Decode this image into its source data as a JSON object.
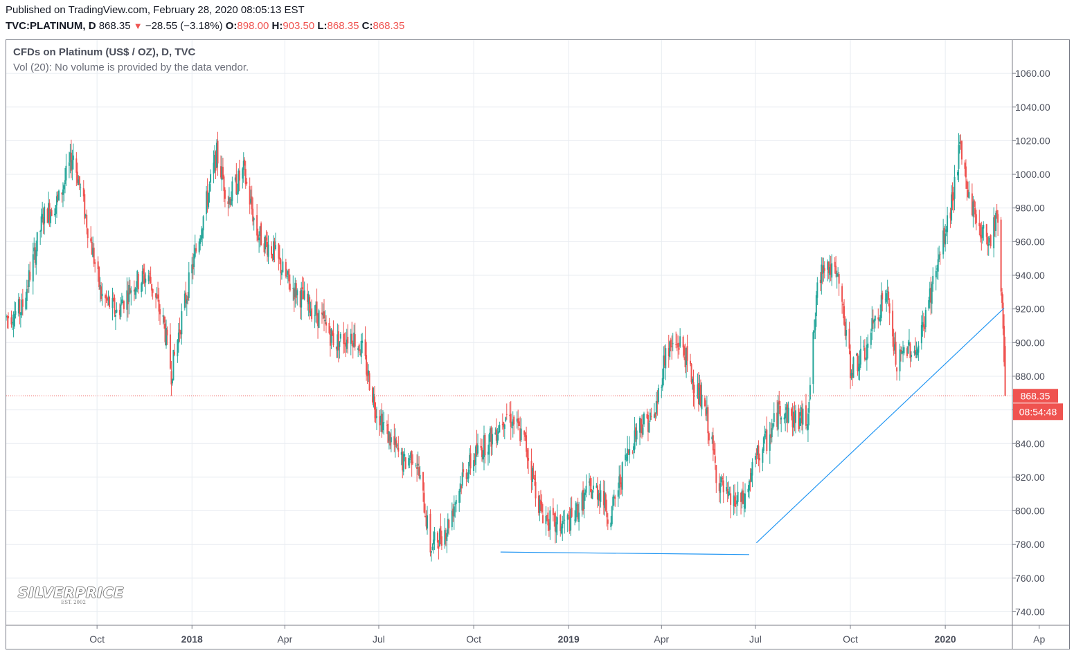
{
  "header": {
    "published": "Published on TradingView.com, February 28, 2020 08:05:13 EST",
    "symbol": "TVC:PLATINUM, D",
    "last": "868.35",
    "change_arrow": "▼",
    "change": "−28.55 (−3.18%)",
    "open_label": "O:",
    "open": "898.00",
    "high_label": "H:",
    "high": "903.50",
    "low_label": "L:",
    "low": "868.35",
    "close_label": "C:",
    "close": "868.35"
  },
  "legend": {
    "title": "CFDs on Platinum (US$ / OZ), D, TVC",
    "volume": "Vol (20): No volume is provided by the data vendor."
  },
  "watermark": {
    "logo": "SILVERPRICE",
    "sub": "EST. 2002"
  },
  "colors": {
    "up": "#26a69a",
    "down": "#ef5350",
    "grid": "#e8ecf1",
    "trendline": "#2196f3",
    "price_line": "#ef5350",
    "axis_text": "#4a4e5a"
  },
  "chart_data": {
    "type": "candlestick",
    "title": "CFDs on Platinum (US$ / OZ), D, TVC",
    "ylim": [
      730,
      1070
    ],
    "y_ticks": [
      740,
      760,
      780,
      800,
      820,
      840,
      860,
      880,
      900,
      920,
      940,
      960,
      980,
      1000,
      1020,
      1040,
      1060
    ],
    "y_tick_labels": [
      "740.00",
      "760.00",
      "780.00",
      "800.00",
      "820.00",
      "840.00",
      "860.00",
      "880.00",
      "900.00",
      "920.00",
      "940.00",
      "960.00",
      "980.00",
      "1000.00",
      "1020.00",
      "1040.00",
      "1060.00"
    ],
    "x_range": [
      "2017-07-05",
      "2020-03-06"
    ],
    "x_ticks": [
      {
        "date": "2017-10-01",
        "label": "Oct",
        "bold": false
      },
      {
        "date": "2018-01-01",
        "label": "2018",
        "bold": true
      },
      {
        "date": "2018-04-01",
        "label": "Apr",
        "bold": false
      },
      {
        "date": "2018-07-01",
        "label": "Jul",
        "bold": false
      },
      {
        "date": "2018-10-01",
        "label": "Oct",
        "bold": false
      },
      {
        "date": "2019-01-01",
        "label": "2019",
        "bold": true
      },
      {
        "date": "2019-04-01",
        "label": "Apr",
        "bold": false
      },
      {
        "date": "2019-07-01",
        "label": "Jul",
        "bold": false
      },
      {
        "date": "2019-10-01",
        "label": "Oct",
        "bold": false
      },
      {
        "date": "2020-01-01",
        "label": "2020",
        "bold": true
      },
      {
        "date": "2020-04-01",
        "label": "Ap",
        "bold": false
      }
    ],
    "price_path": [
      [
        "2017-07-05",
        915
      ],
      [
        "2017-07-20",
        920
      ],
      [
        "2017-08-10",
        975
      ],
      [
        "2017-08-25",
        985
      ],
      [
        "2017-09-08",
        1012
      ],
      [
        "2017-09-20",
        975
      ],
      [
        "2017-10-05",
        928
      ],
      [
        "2017-10-20",
        918
      ],
      [
        "2017-11-05",
        935
      ],
      [
        "2017-11-20",
        940
      ],
      [
        "2017-12-05",
        910
      ],
      [
        "2017-12-12",
        882
      ],
      [
        "2017-12-22",
        915
      ],
      [
        "2018-01-05",
        955
      ],
      [
        "2018-01-25",
        1012
      ],
      [
        "2018-02-05",
        985
      ],
      [
        "2018-02-20",
        1002
      ],
      [
        "2018-03-05",
        965
      ],
      [
        "2018-03-20",
        955
      ],
      [
        "2018-04-05",
        935
      ],
      [
        "2018-04-20",
        925
      ],
      [
        "2018-05-05",
        915
      ],
      [
        "2018-05-20",
        900
      ],
      [
        "2018-06-05",
        905
      ],
      [
        "2018-06-15",
        895
      ],
      [
        "2018-06-28",
        862
      ],
      [
        "2018-07-10",
        845
      ],
      [
        "2018-07-25",
        828
      ],
      [
        "2018-08-05",
        835
      ],
      [
        "2018-08-15",
        800
      ],
      [
        "2018-08-20",
        778
      ],
      [
        "2018-09-05",
        790
      ],
      [
        "2018-09-20",
        820
      ],
      [
        "2018-10-05",
        835
      ],
      [
        "2018-10-20",
        845
      ],
      [
        "2018-11-01",
        858
      ],
      [
        "2018-11-10",
        852
      ],
      [
        "2018-11-20",
        840
      ],
      [
        "2018-12-05",
        800
      ],
      [
        "2018-12-20",
        790
      ],
      [
        "2019-01-05",
        795
      ],
      [
        "2019-01-20",
        812
      ],
      [
        "2019-02-01",
        812
      ],
      [
        "2019-02-10",
        795
      ],
      [
        "2019-02-25",
        830
      ],
      [
        "2019-03-10",
        852
      ],
      [
        "2019-03-25",
        855
      ],
      [
        "2019-04-05",
        895
      ],
      [
        "2019-04-20",
        900
      ],
      [
        "2019-05-01",
        878
      ],
      [
        "2019-05-15",
        855
      ],
      [
        "2019-05-25",
        820
      ],
      [
        "2019-06-05",
        805
      ],
      [
        "2019-06-20",
        805
      ],
      [
        "2019-07-01",
        830
      ],
      [
        "2019-07-15",
        845
      ],
      [
        "2019-07-25",
        862
      ],
      [
        "2019-08-05",
        855
      ],
      [
        "2019-08-20",
        855
      ],
      [
        "2019-08-30",
        930
      ],
      [
        "2019-09-05",
        950
      ],
      [
        "2019-09-20",
        935
      ],
      [
        "2019-10-01",
        885
      ],
      [
        "2019-10-15",
        892
      ],
      [
        "2019-10-25",
        915
      ],
      [
        "2019-11-05",
        930
      ],
      [
        "2019-11-15",
        885
      ],
      [
        "2019-11-25",
        898
      ],
      [
        "2019-12-05",
        895
      ],
      [
        "2019-12-20",
        935
      ],
      [
        "2020-01-05",
        975
      ],
      [
        "2020-01-15",
        1015
      ],
      [
        "2020-01-25",
        985
      ],
      [
        "2020-02-05",
        965
      ],
      [
        "2020-02-14",
        962
      ],
      [
        "2020-02-20",
        978
      ],
      [
        "2020-02-24",
        935
      ],
      [
        "2020-02-26",
        910
      ],
      [
        "2020-02-28",
        868.35
      ]
    ],
    "trendlines": [
      {
        "from": [
          "2018-10-27",
          775.5
        ],
        "to": [
          "2019-06-25",
          774
        ]
      },
      {
        "from": [
          "2019-07-02",
          781
        ],
        "to": [
          "2020-02-27",
          920.5
        ]
      }
    ],
    "last_price": {
      "value": 868.35,
      "label": "868.35",
      "countdown": "08:54:48"
    }
  }
}
